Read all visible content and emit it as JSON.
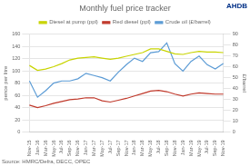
{
  "chart_data": {
    "type": "line",
    "title": "Monthly fuel price tracker",
    "annotations": [
      {
        "text": "AHDB",
        "color": "#003087"
      },
      {
        "text": "Source: HMRC/Defra, DECC, OPEC"
      }
    ],
    "categories": [
      "Nov-15",
      "Jan-16",
      "Mar-16",
      "May-16",
      "Jul-16",
      "Sep-16",
      "Nov-16",
      "Jan-17",
      "Mar-17",
      "May-17",
      "Jul-17",
      "Sep-17",
      "Nov-17",
      "Jan-18",
      "Mar-18",
      "May-18",
      "Jul-18",
      "Sep-18",
      "Nov-18",
      "Jan-19",
      "Mar-19",
      "May-19",
      "Jul-19",
      "Sep-19",
      "Nov-19"
    ],
    "series": [
      {
        "name": "Diesel at pump (ppl)",
        "color": "#c8d400",
        "values": [
          109,
          101,
          103,
          107,
          112,
          118,
          121,
          122,
          123,
          121,
          119,
          121,
          124,
          127,
          130,
          136,
          136,
          132,
          128,
          127,
          130,
          132,
          131,
          131,
          130
        ]
      },
      {
        "name": "Red diesel (ppl)",
        "color": "#c0392b",
        "values": [
          44,
          40,
          43,
          47,
          50,
          53,
          54,
          56,
          56,
          51,
          49,
          52,
          55,
          59,
          63,
          67,
          68,
          66,
          62,
          59,
          62,
          64,
          63,
          62,
          62
        ]
      },
      {
        "name": "Crude oil (£/barrel)",
        "color": "#5b9bd5",
        "axis": "y2",
        "values": [
          47,
          32,
          38,
          45,
          47,
          47,
          49,
          54,
          52,
          50,
          47,
          55,
          62,
          68,
          65,
          73,
          74,
          82,
          63,
          56,
          65,
          70,
          62,
          58,
          63
        ]
      }
    ],
    "ylabel": "pence per litre",
    "y2label": "£/barrel",
    "ylim": [
      0,
      160
    ],
    "yticks": [
      0,
      20,
      40,
      60,
      80,
      100,
      120,
      140,
      160
    ],
    "y2lim": [
      0,
      90
    ],
    "y2ticks": [
      0,
      10,
      20,
      30,
      40,
      50,
      60,
      70,
      80,
      90
    ],
    "grid": true,
    "legend": "top"
  }
}
